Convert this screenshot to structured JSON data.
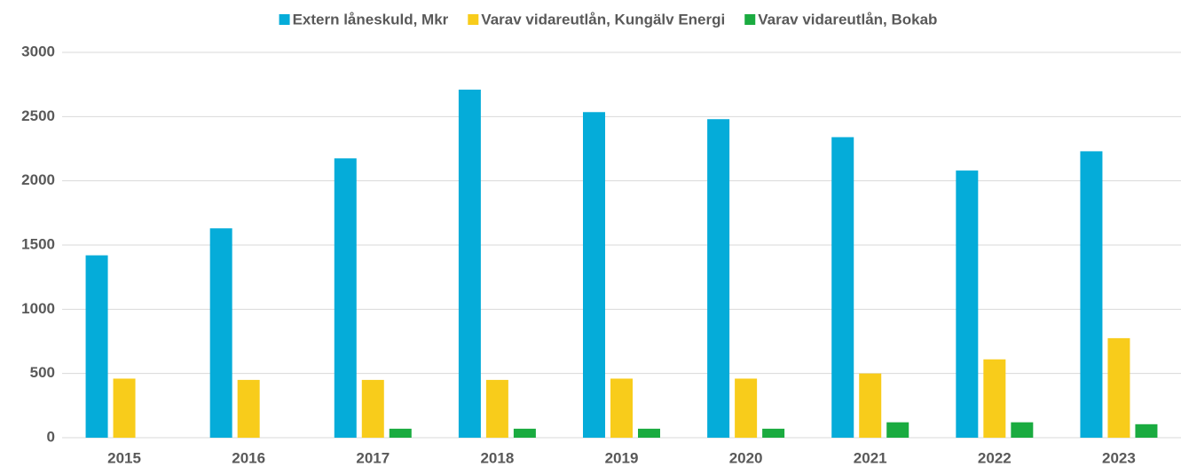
{
  "chart_data": {
    "type": "bar",
    "categories": [
      "2015",
      "2016",
      "2017",
      "2018",
      "2019",
      "2020",
      "2021",
      "2022",
      "2023"
    ],
    "series": [
      {
        "name": "Extern låneskuld, Mkr",
        "color": "#05acd9",
        "values": [
          1420,
          1630,
          2175,
          2710,
          2535,
          2480,
          2340,
          2080,
          2230
        ]
      },
      {
        "name": "Varav vidareutlån, Kungälv Energi",
        "color": "#f8cc1b",
        "values": [
          460,
          450,
          450,
          450,
          460,
          460,
          500,
          610,
          775
        ]
      },
      {
        "name": "Varav vidareutlån, Bokab",
        "color": "#1aab40",
        "values": [
          0,
          0,
          70,
          70,
          70,
          70,
          120,
          120,
          105
        ]
      }
    ],
    "ylim": [
      0,
      3000
    ],
    "yticks": [
      0,
      500,
      1000,
      1500,
      2000,
      2500,
      3000
    ],
    "grid": true,
    "legend": "top"
  }
}
